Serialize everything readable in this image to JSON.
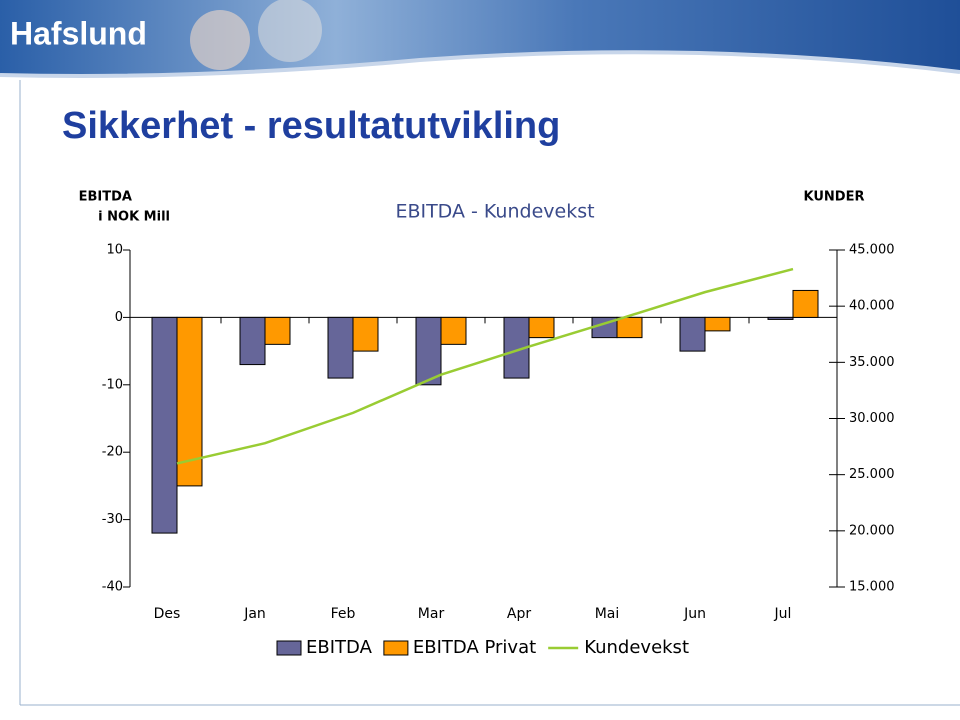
{
  "logo": "Hafslund",
  "slide_title": "Sikkerhet - resultatutvikling",
  "chart_data": {
    "type": "bar",
    "title": "EBITDA - Kundevekst",
    "y_label": [
      "EBITDA",
      "i NOK Mill"
    ],
    "y2_label": "KUNDER",
    "categories": [
      "Des",
      "Jan",
      "Feb",
      "Mar",
      "Apr",
      "Mai",
      "Jun",
      "Jul"
    ],
    "series": [
      {
        "name": "EBITDA",
        "type": "bar",
        "color": "#666699",
        "values": [
          -32,
          -7,
          -9,
          -10,
          -9,
          -3,
          -5,
          -0.3
        ]
      },
      {
        "name": "EBITDA Privat",
        "type": "bar",
        "color": "#ff9900",
        "values": [
          -25,
          -4,
          -5,
          -4,
          -3,
          -3,
          -2,
          4
        ]
      },
      {
        "name": "Kundevekst",
        "type": "line",
        "axis": "y2",
        "color": "#99cc33",
        "values": [
          26000,
          27800,
          30500,
          33900,
          36400,
          38800,
          41250,
          43300
        ]
      }
    ],
    "ylim": [
      -40,
      10
    ],
    "yticks": [
      -40,
      -30,
      -20,
      -10,
      0,
      10
    ],
    "y2lim": [
      15000,
      45000
    ],
    "y2ticks": [
      {
        "value": 15000,
        "label": "15.000"
      },
      {
        "value": 20000,
        "label": "20.000"
      },
      {
        "value": 25000,
        "label": "25.000"
      },
      {
        "value": 30000,
        "label": "30.000"
      },
      {
        "value": 35000,
        "label": "35.000"
      },
      {
        "value": 40000,
        "label": "40.000"
      },
      {
        "value": 45000,
        "label": "45.000"
      }
    ],
    "legend": "bottom"
  }
}
